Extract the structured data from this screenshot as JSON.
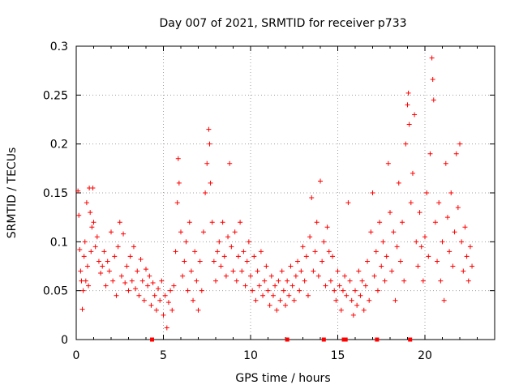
{
  "chart_data": {
    "type": "scatter",
    "title": "Day 007 of 2021, SRMTID for receiver p733",
    "xlabel": "GPS time / hours",
    "ylabel": "SRMTID / TECUs",
    "xlim": [
      0,
      24
    ],
    "ylim": [
      0,
      0.3
    ],
    "xticks": [
      0,
      5,
      10,
      15,
      20
    ],
    "xtick_labels": [
      "0",
      "5",
      "10",
      "15",
      "20"
    ],
    "yticks": [
      0,
      0.05,
      0.1,
      0.15,
      0.2,
      0.25,
      0.3
    ],
    "ytick_labels": [
      "0",
      "0.05",
      "0.1",
      "0.15",
      "0.2",
      "0.25",
      "0.3"
    ],
    "grid": true,
    "marker": "+",
    "color": "#ff0000",
    "series": [
      {
        "name": "SRMTID",
        "points": [
          [
            0.1,
            0.152
          ],
          [
            0.15,
            0.127
          ],
          [
            0.2,
            0.092
          ],
          [
            0.25,
            0.07
          ],
          [
            0.3,
            0.06
          ],
          [
            0.35,
            0.031
          ],
          [
            0.4,
            0.05
          ],
          [
            0.45,
            0.085
          ],
          [
            0.5,
            0.1
          ],
          [
            0.55,
            0.06
          ],
          [
            0.6,
            0.14
          ],
          [
            0.65,
            0.075
          ],
          [
            0.7,
            0.055
          ],
          [
            0.75,
            0.155
          ],
          [
            0.8,
            0.13
          ],
          [
            0.85,
            0.09
          ],
          [
            0.9,
            0.115
          ],
          [
            0.95,
            0.155
          ],
          [
            1.0,
            0.12
          ],
          [
            1.1,
            0.095
          ],
          [
            1.2,
            0.105
          ],
          [
            1.3,
            0.08
          ],
          [
            1.4,
            0.068
          ],
          [
            1.5,
            0.075
          ],
          [
            1.6,
            0.09
          ],
          [
            1.7,
            0.055
          ],
          [
            1.8,
            0.08
          ],
          [
            1.9,
            0.07
          ],
          [
            2.0,
            0.11
          ],
          [
            2.1,
            0.06
          ],
          [
            2.2,
            0.085
          ],
          [
            2.3,
            0.045
          ],
          [
            2.4,
            0.095
          ],
          [
            2.5,
            0.12
          ],
          [
            2.6,
            0.065
          ],
          [
            2.7,
            0.108
          ],
          [
            2.8,
            0.058
          ],
          [
            2.9,
            0.075
          ],
          [
            3.0,
            0.05
          ],
          [
            3.1,
            0.085
          ],
          [
            3.2,
            0.06
          ],
          [
            3.3,
            0.095
          ],
          [
            3.4,
            0.052
          ],
          [
            3.5,
            0.07
          ],
          [
            3.6,
            0.045
          ],
          [
            3.7,
            0.082
          ],
          [
            3.8,
            0.06
          ],
          [
            3.9,
            0.04
          ],
          [
            4.0,
            0.072
          ],
          [
            4.1,
            0.055
          ],
          [
            4.2,
            0.065
          ],
          [
            4.3,
            0.035
          ],
          [
            4.4,
            0.058
          ],
          [
            4.5,
            0.045
          ],
          [
            4.6,
            0.03
          ],
          [
            4.7,
            0.052
          ],
          [
            4.8,
            0.04
          ],
          [
            4.9,
            0.06
          ],
          [
            5.0,
            0.025
          ],
          [
            5.1,
            0.045
          ],
          [
            5.2,
            0.012
          ],
          [
            5.3,
            0.038
          ],
          [
            5.4,
            0.05
          ],
          [
            5.5,
            0.03
          ],
          [
            5.6,
            0.055
          ],
          [
            5.7,
            0.09
          ],
          [
            5.8,
            0.14
          ],
          [
            5.85,
            0.185
          ],
          [
            5.9,
            0.16
          ],
          [
            6.0,
            0.11
          ],
          [
            6.1,
            0.065
          ],
          [
            6.2,
            0.08
          ],
          [
            6.3,
            0.1
          ],
          [
            6.4,
            0.05
          ],
          [
            6.5,
            0.12
          ],
          [
            6.6,
            0.07
          ],
          [
            6.7,
            0.04
          ],
          [
            6.8,
            0.09
          ],
          [
            6.9,
            0.06
          ],
          [
            7.0,
            0.03
          ],
          [
            7.1,
            0.08
          ],
          [
            7.2,
            0.05
          ],
          [
            7.3,
            0.11
          ],
          [
            7.4,
            0.15
          ],
          [
            7.5,
            0.18
          ],
          [
            7.6,
            0.215
          ],
          [
            7.65,
            0.2
          ],
          [
            7.7,
            0.16
          ],
          [
            7.8,
            0.12
          ],
          [
            7.9,
            0.08
          ],
          [
            8.0,
            0.06
          ],
          [
            8.1,
            0.09
          ],
          [
            8.2,
            0.1
          ],
          [
            8.3,
            0.075
          ],
          [
            8.4,
            0.12
          ],
          [
            8.5,
            0.085
          ],
          [
            8.6,
            0.065
          ],
          [
            8.7,
            0.105
          ],
          [
            8.8,
            0.18
          ],
          [
            8.9,
            0.095
          ],
          [
            9.0,
            0.07
          ],
          [
            9.1,
            0.11
          ],
          [
            9.2,
            0.06
          ],
          [
            9.3,
            0.085
          ],
          [
            9.4,
            0.12
          ],
          [
            9.5,
            0.07
          ],
          [
            9.6,
            0.09
          ],
          [
            9.7,
            0.055
          ],
          [
            9.8,
            0.08
          ],
          [
            9.9,
            0.1
          ],
          [
            10.0,
            0.065
          ],
          [
            10.1,
            0.05
          ],
          [
            10.2,
            0.085
          ],
          [
            10.3,
            0.04
          ],
          [
            10.4,
            0.07
          ],
          [
            10.5,
            0.055
          ],
          [
            10.6,
            0.09
          ],
          [
            10.7,
            0.045
          ],
          [
            10.8,
            0.06
          ],
          [
            10.9,
            0.075
          ],
          [
            11.0,
            0.05
          ],
          [
            11.1,
            0.035
          ],
          [
            11.2,
            0.065
          ],
          [
            11.3,
            0.045
          ],
          [
            11.4,
            0.055
          ],
          [
            11.5,
            0.03
          ],
          [
            11.6,
            0.06
          ],
          [
            11.7,
            0.04
          ],
          [
            11.8,
            0.07
          ],
          [
            11.9,
            0.05
          ],
          [
            12.0,
            0.035
          ],
          [
            12.1,
            0.06
          ],
          [
            12.2,
            0.045
          ],
          [
            12.3,
            0.075
          ],
          [
            12.4,
            0.055
          ],
          [
            12.5,
            0.04
          ],
          [
            12.6,
            0.065
          ],
          [
            12.7,
            0.08
          ],
          [
            12.8,
            0.05
          ],
          [
            12.9,
            0.07
          ],
          [
            13.0,
            0.095
          ],
          [
            13.1,
            0.06
          ],
          [
            13.2,
            0.085
          ],
          [
            13.3,
            0.045
          ],
          [
            13.4,
            0.105
          ],
          [
            13.5,
            0.145
          ],
          [
            13.6,
            0.07
          ],
          [
            13.7,
            0.09
          ],
          [
            13.8,
            0.12
          ],
          [
            13.9,
            0.065
          ],
          [
            14.0,
            0.162
          ],
          [
            14.1,
            0.08
          ],
          [
            14.2,
            0.1
          ],
          [
            14.3,
            0.055
          ],
          [
            14.4,
            0.115
          ],
          [
            14.5,
            0.09
          ],
          [
            14.6,
            0.06
          ],
          [
            14.7,
            0.085
          ],
          [
            14.8,
            0.05
          ],
          [
            14.9,
            0.04
          ],
          [
            15.0,
            0.07
          ],
          [
            15.1,
            0.055
          ],
          [
            15.2,
            0.03
          ],
          [
            15.3,
            0.05
          ],
          [
            15.4,
            0.065
          ],
          [
            15.5,
            0.045
          ],
          [
            15.6,
            0.14
          ],
          [
            15.7,
            0.06
          ],
          [
            15.8,
            0.04
          ],
          [
            15.9,
            0.025
          ],
          [
            16.0,
            0.05
          ],
          [
            16.1,
            0.035
          ],
          [
            16.2,
            0.07
          ],
          [
            16.3,
            0.045
          ],
          [
            16.4,
            0.06
          ],
          [
            16.5,
            0.03
          ],
          [
            16.6,
            0.055
          ],
          [
            16.7,
            0.08
          ],
          [
            16.8,
            0.04
          ],
          [
            16.9,
            0.11
          ],
          [
            17.0,
            0.15
          ],
          [
            17.1,
            0.065
          ],
          [
            17.2,
            0.09
          ],
          [
            17.3,
            0.05
          ],
          [
            17.4,
            0.12
          ],
          [
            17.5,
            0.075
          ],
          [
            17.6,
            0.1
          ],
          [
            17.7,
            0.06
          ],
          [
            17.8,
            0.085
          ],
          [
            17.9,
            0.18
          ],
          [
            18.0,
            0.13
          ],
          [
            18.1,
            0.07
          ],
          [
            18.2,
            0.11
          ],
          [
            18.3,
            0.04
          ],
          [
            18.4,
            0.095
          ],
          [
            18.5,
            0.16
          ],
          [
            18.6,
            0.08
          ],
          [
            18.7,
            0.12
          ],
          [
            18.8,
            0.06
          ],
          [
            18.9,
            0.2
          ],
          [
            19.0,
            0.24
          ],
          [
            19.05,
            0.252
          ],
          [
            19.1,
            0.22
          ],
          [
            19.2,
            0.14
          ],
          [
            19.3,
            0.17
          ],
          [
            19.4,
            0.23
          ],
          [
            19.5,
            0.1
          ],
          [
            19.6,
            0.075
          ],
          [
            19.7,
            0.13
          ],
          [
            19.8,
            0.095
          ],
          [
            19.9,
            0.06
          ],
          [
            20.0,
            0.105
          ],
          [
            20.1,
            0.15
          ],
          [
            20.2,
            0.085
          ],
          [
            20.3,
            0.19
          ],
          [
            20.4,
            0.288
          ],
          [
            20.45,
            0.266
          ],
          [
            20.5,
            0.245
          ],
          [
            20.6,
            0.12
          ],
          [
            20.7,
            0.08
          ],
          [
            20.8,
            0.14
          ],
          [
            20.9,
            0.06
          ],
          [
            21.0,
            0.1
          ],
          [
            21.1,
            0.04
          ],
          [
            21.2,
            0.18
          ],
          [
            21.3,
            0.125
          ],
          [
            21.4,
            0.09
          ],
          [
            21.5,
            0.15
          ],
          [
            21.6,
            0.075
          ],
          [
            21.7,
            0.11
          ],
          [
            21.8,
            0.19
          ],
          [
            21.9,
            0.135
          ],
          [
            22.0,
            0.2
          ],
          [
            22.1,
            0.1
          ],
          [
            22.2,
            0.07
          ],
          [
            22.3,
            0.115
          ],
          [
            22.4,
            0.085
          ],
          [
            22.5,
            0.06
          ],
          [
            22.6,
            0.095
          ],
          [
            22.7,
            0.075
          ]
        ]
      }
    ],
    "gap_markers_x": [
      4.35,
      12.1,
      14.2,
      15.35,
      15.45,
      17.25,
      19.15
    ]
  }
}
